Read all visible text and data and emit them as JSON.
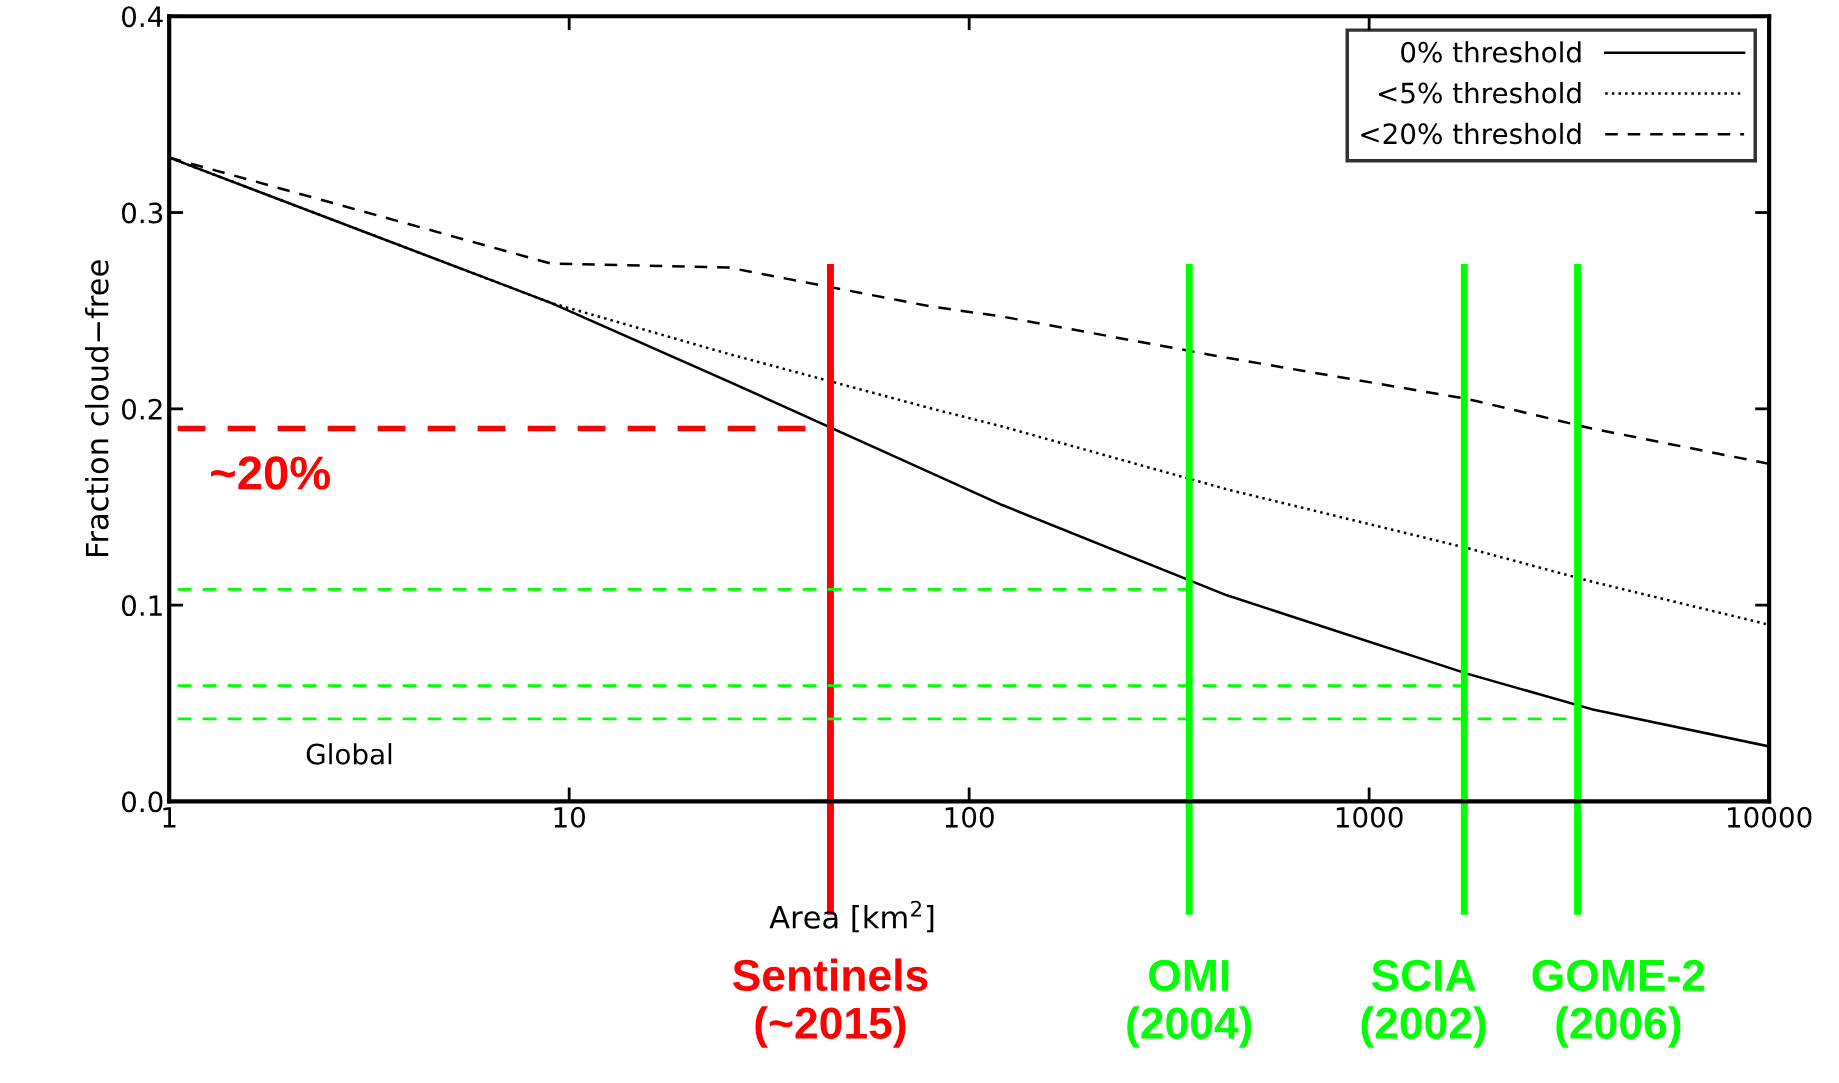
{
  "chart_data": {
    "type": "line",
    "xlabel": "Area [km$^{2}$]",
    "ylabel": "Fraction cloud−free",
    "x": [
      1,
      9,
      25,
      81,
      121,
      441,
      1764,
      3600,
      10000
    ],
    "series": [
      {
        "name": "0% threshold",
        "color": "#000000",
        "line_style": "solid",
        "values": [
          0.328,
          0.254,
          0.214,
          0.167,
          0.151,
          0.105,
          0.065,
          0.047,
          0.028
        ]
      },
      {
        "name": "<5% threshold",
        "color": "#000000",
        "line_style": "dotted",
        "values": [
          0.328,
          0.254,
          0.228,
          0.2,
          0.191,
          0.159,
          0.129,
          0.112,
          0.09
        ]
      },
      {
        "name": "<20% threshold",
        "color": "#000000",
        "line_style": "dashed",
        "values": [
          0.328,
          0.274,
          0.272,
          0.252,
          0.247,
          0.226,
          0.205,
          0.19,
          0.172
        ]
      }
    ],
    "log": "x",
    "xlim": [
      1,
      10000
    ],
    "xticks": [
      1,
      10,
      100,
      1000,
      10000
    ],
    "ylim": [
      0,
      0.4
    ],
    "yticks": [
      {
        "value": 0,
        "label": "0.0"
      },
      0.1,
      0.2,
      0.3,
      0.4
    ],
    "grid": false,
    "legend": "top right",
    "ref_lines": [
      {
        "axis": "x",
        "value": 45,
        "label": "Sentinels\n(~2015)",
        "color": "#ff0000",
        "line_style": "solid"
      },
      {
        "axis": "x",
        "value": 355,
        "label": "OMI\n(2004)",
        "color": "#00ff00",
        "line_style": "solid"
      },
      {
        "axis": "x",
        "value": 1730,
        "label": "SCIA\n(2002)",
        "color": "#00ff00",
        "line_style": "solid"
      },
      {
        "axis": "x",
        "value": 3320,
        "label": "GOME-2\n(2006)",
        "color": "#00ff00",
        "line_style": "solid"
      },
      {
        "axis": "y",
        "value": 0.19,
        "color": "#ff0000",
        "line_style": "dashed"
      },
      {
        "axis": "y",
        "value": 0.108,
        "color": "#00ff00",
        "line_style": "dashed"
      },
      {
        "axis": "y",
        "value": 0.059,
        "color": "#00ff00",
        "line_style": "dashed"
      },
      {
        "axis": "y",
        "value": 0.042,
        "color": "#00ff00",
        "line_style": "dashed"
      }
    ],
    "annotations": [
      "~20%",
      "Global"
    ]
  }
}
